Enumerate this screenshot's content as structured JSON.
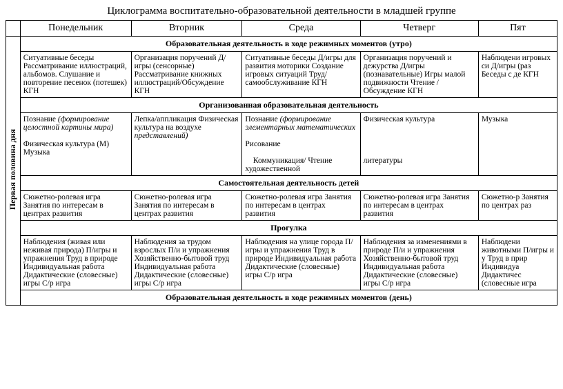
{
  "title": "Циклограмма воспитательно-образовательной деятельности в младшей группе",
  "side": "Первая половина дня",
  "days": {
    "d1": "Понедельник",
    "d2": "Вторник",
    "d3": "Среда",
    "d4": "Четверг",
    "d5": "Пят"
  },
  "sec1": "Образовательная деятельность в ходе режимных моментов (утро)",
  "r1": {
    "c1": "Ситуативные беседы Рассматривание иллюстраций, альбомов. Слушание и повторение песенок (потешек) КГН",
    "c2": "Организация поручений Д/игры (сенсорные) Рассматривание книжных иллюстраций/Обсуждение КГН",
    "c3": "Ситуативные беседы Д/игры для развития моторики Создание игровых ситуаций Труд/самообслуживание КГН",
    "c4": "Организация поручений и дежурства Д/игры (познавательные) Игры малой подвижности Чтение /Обсуждение КГН",
    "c5": "Наблюдени игровых си Д/игры (раз Беседы с де КГН"
  },
  "sec2": "Организованная образовательная деятельность",
  "r2": {
    "c1a": "Познание ",
    "c1i": "(формирование целостной картины мира)",
    "c1b": "Физическая культура (М)  Музыка",
    "c2a": "Лепка/аппликация Физическая культура на воздухе ",
    "c2i": "представлений)",
    "c3a": "Познание ",
    "c3i": "(формирование элементарных математических",
    "c3b": "Рисование",
    "c3c": "Коммуникация/ Чтение художественной",
    "c4a": "Физическая культура",
    "c4b": "литературы",
    "c5": "Музыка"
  },
  "sec3": "Самостоятельная деятельность детей",
  "r3": {
    "c1": "Сюжетно-ролевая игра Занятия по интересам в центрах развития",
    "c2": "Сюжетно-ролевая игра Занятия по интересам в центрах развития",
    "c3": "Сюжетно-ролевая игра Занятия по интересам в центрах развития",
    "c4": "Сюжетно-ролевая игра Занятия по интересам в центрах развития",
    "c5": "Сюжетно-р Занятия по центрах раз"
  },
  "sec4": "Прогулка",
  "r4": {
    "c1": "Наблюдения (живая или неживая природа) П/игры и упражнения Труд в природе Индивидуальная работа Дидактические (словесные) игры С/р игра",
    "c2": "Наблюдения за трудом взрослых П/и и упражнения Хозяйственно-бытовой труд Индивидуальная работа Дидактические (словесные) игры С/р игра",
    "c3": "Наблюдения на улице города П/игры и упражнения Труд в природе Индивидуальная работа Дидактические (словесные) игры С/р игра",
    "c4": "Наблюдения за изменениями в природе П/и и упражнения Хозяйственно-бытовой труд Индивидуальная работа Дидактические (словесные) игры С/р игра",
    "c5": "Наблюдени животными П/игры и у Труд в прир Индивидуа Дидактичес (словесные игра"
  },
  "sec5": "Образовательная деятельность в ходе режимных моментов (день)"
}
